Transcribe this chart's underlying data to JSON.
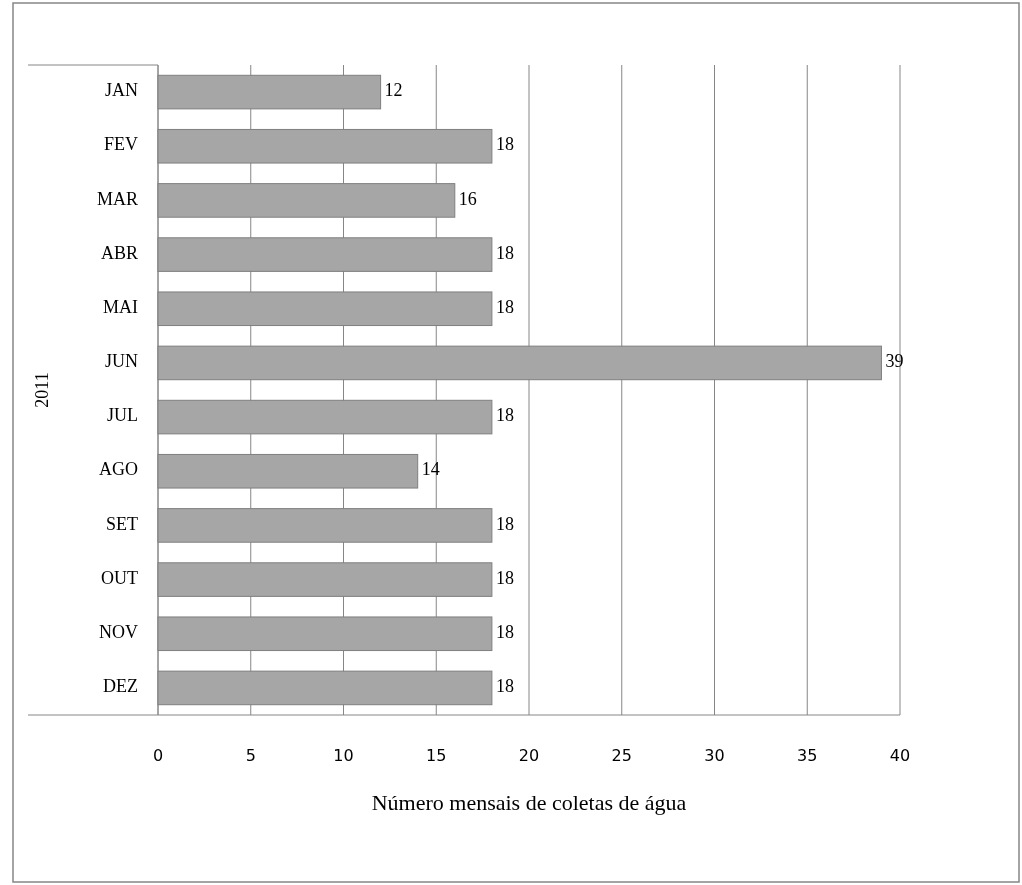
{
  "chart_data": {
    "type": "bar",
    "orientation": "horizontal",
    "categories": [
      "JAN",
      "FEV",
      "MAR",
      "ABR",
      "MAI",
      "JUN",
      "JUL",
      "AGO",
      "SET",
      "OUT",
      "NOV",
      "DEZ"
    ],
    "values": [
      12,
      18,
      16,
      18,
      18,
      39,
      18,
      14,
      18,
      18,
      18,
      18
    ],
    "color": "#a6a6a6",
    "xlim": [
      0,
      40
    ],
    "xticks": [
      0,
      5,
      10,
      15,
      20,
      25,
      30,
      35,
      40
    ],
    "grid": "x",
    "data_labels": true,
    "xlabel": "Número mensais de coletas de água",
    "ylabel": "2011"
  }
}
